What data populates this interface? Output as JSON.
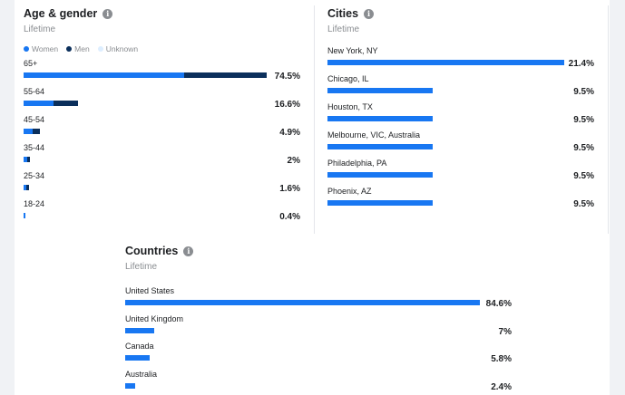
{
  "colors": {
    "women": "#1877f2",
    "men": "#0b2f5b",
    "unknown": "#ddeeff"
  },
  "age_gender": {
    "title": "Age & gender",
    "subtitle": "Lifetime",
    "legend": [
      "Women",
      "Men",
      "Unknown"
    ],
    "rows": [
      {
        "label": "65+",
        "pct": "74.5%",
        "women": 0.66,
        "men": 0.34
      },
      {
        "label": "55-64",
        "pct": "16.6%",
        "women": 0.55,
        "men": 0.45
      },
      {
        "label": "45-54",
        "pct": "4.9%",
        "women": 0.55,
        "men": 0.45
      },
      {
        "label": "35-44",
        "pct": "2%",
        "women": 0.55,
        "men": 0.45
      },
      {
        "label": "25-34",
        "pct": "1.6%",
        "women": 0.6,
        "men": 0.4
      },
      {
        "label": "18-24",
        "pct": "0.4%",
        "women": 1.0,
        "men": 0.0
      }
    ]
  },
  "cities": {
    "title": "Cities",
    "subtitle": "Lifetime",
    "rows": [
      {
        "label": "New York, NY",
        "pct": "21.4%",
        "value": 21.4
      },
      {
        "label": "Chicago, IL",
        "pct": "9.5%",
        "value": 9.5
      },
      {
        "label": "Houston, TX",
        "pct": "9.5%",
        "value": 9.5
      },
      {
        "label": "Melbourne, VIC, Australia",
        "pct": "9.5%",
        "value": 9.5
      },
      {
        "label": "Philadelphia, PA",
        "pct": "9.5%",
        "value": 9.5
      },
      {
        "label": "Phoenix, AZ",
        "pct": "9.5%",
        "value": 9.5
      }
    ]
  },
  "countries": {
    "title": "Countries",
    "subtitle": "Lifetime",
    "rows": [
      {
        "label": "United States",
        "pct": "84.6%",
        "value": 84.6
      },
      {
        "label": "United Kingdom",
        "pct": "7%",
        "value": 7
      },
      {
        "label": "Canada",
        "pct": "5.8%",
        "value": 5.8
      },
      {
        "label": "Australia",
        "pct": "2.4%",
        "value": 2.4
      }
    ]
  }
}
